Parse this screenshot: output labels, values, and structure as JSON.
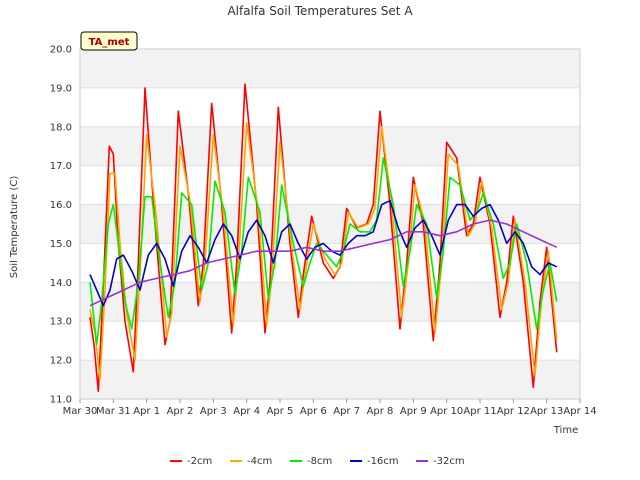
{
  "chart_data": {
    "type": "line",
    "title": "Alfalfa Soil Temperatures Set A",
    "xlabel": "Time",
    "ylabel": "Soil Temperature (C)",
    "badge": "TA_met",
    "ylim": [
      11.0,
      20.0
    ],
    "xlim": [
      0,
      15
    ],
    "y_ticks": [
      "11.0",
      "12.0",
      "13.0",
      "14.0",
      "15.0",
      "16.0",
      "17.0",
      "18.0",
      "19.0",
      "20.0"
    ],
    "x_ticks": [
      "Mar 30",
      "Mar 31",
      "Apr 1",
      "Apr 2",
      "Apr 3",
      "Apr 4",
      "Apr 5",
      "Apr 6",
      "Apr 7",
      "Apr 8",
      "Apr 9",
      "Apr 10",
      "Apr 11",
      "Apr 12",
      "Apr 13",
      "Apr 14"
    ],
    "legend_position": "bottom",
    "grid": true,
    "series": [
      {
        "name": "-2cm",
        "color": "#ff0000",
        "x": [
          0.3,
          0.42,
          0.55,
          0.72,
          0.88,
          1.0,
          1.15,
          1.35,
          1.6,
          1.75,
          1.95,
          2.25,
          2.55,
          2.7,
          2.95,
          3.25,
          3.55,
          3.7,
          3.95,
          4.25,
          4.55,
          4.7,
          4.95,
          5.3,
          5.55,
          5.7,
          5.95,
          6.3,
          6.55,
          6.7,
          6.95,
          7.3,
          7.6,
          7.8,
          8.0,
          8.3,
          8.6,
          8.8,
          9.0,
          9.3,
          9.6,
          9.8,
          10.0,
          10.3,
          10.6,
          10.8,
          11.0,
          11.3,
          11.6,
          11.8,
          12.0,
          12.3,
          12.6,
          12.8,
          13.0,
          13.3,
          13.6,
          13.8,
          14.0,
          14.3
        ],
        "y": [
          13.1,
          12.4,
          11.2,
          14.3,
          17.5,
          17.3,
          15.0,
          13.0,
          11.7,
          14.5,
          19.0,
          15.5,
          12.4,
          13.0,
          18.4,
          16.3,
          13.4,
          14.5,
          18.6,
          16.0,
          12.7,
          14.5,
          19.1,
          16.0,
          12.7,
          14.0,
          18.5,
          15.0,
          13.1,
          14.2,
          15.7,
          14.5,
          14.1,
          14.4,
          15.9,
          15.4,
          15.5,
          16.0,
          18.4,
          16.0,
          12.8,
          14.5,
          16.7,
          15.5,
          12.5,
          14.5,
          17.6,
          17.2,
          15.2,
          15.5,
          16.7,
          15.5,
          13.1,
          14.0,
          15.7,
          14.0,
          11.3,
          13.5,
          14.9,
          12.2
        ]
      },
      {
        "name": "-4cm",
        "color": "#ffa500",
        "x": [
          0.3,
          0.45,
          0.6,
          0.75,
          0.9,
          1.05,
          1.2,
          1.4,
          1.65,
          1.8,
          2.0,
          2.3,
          2.6,
          2.75,
          3.0,
          3.3,
          3.6,
          3.75,
          4.0,
          4.3,
          4.6,
          4.75,
          5.0,
          5.35,
          5.6,
          5.75,
          6.0,
          6.35,
          6.6,
          6.75,
          7.0,
          7.35,
          7.65,
          7.85,
          8.05,
          8.35,
          8.65,
          8.85,
          9.05,
          9.35,
          9.65,
          9.85,
          10.05,
          10.35,
          10.65,
          10.85,
          11.05,
          11.35,
          11.65,
          11.85,
          12.05,
          12.35,
          12.65,
          12.85,
          13.05,
          13.35,
          13.65,
          13.85,
          14.05,
          14.3
        ],
        "y": [
          13.3,
          12.7,
          11.5,
          13.8,
          16.8,
          16.8,
          15.0,
          13.2,
          12.0,
          14.2,
          17.8,
          15.6,
          12.6,
          13.2,
          17.5,
          16.1,
          13.5,
          14.5,
          17.8,
          15.8,
          12.9,
          14.5,
          18.1,
          15.8,
          12.9,
          14.1,
          17.6,
          14.9,
          13.3,
          14.2,
          15.5,
          14.6,
          14.2,
          14.5,
          15.8,
          15.4,
          15.5,
          15.9,
          18.0,
          16.0,
          13.1,
          14.5,
          16.5,
          15.5,
          12.7,
          14.5,
          17.3,
          17.0,
          15.2,
          15.5,
          16.6,
          15.4,
          13.3,
          14.0,
          15.6,
          14.0,
          11.6,
          13.6,
          14.8,
          12.5
        ]
      },
      {
        "name": "-8cm",
        "color": "#00ee00",
        "x": [
          0.3,
          0.5,
          0.65,
          0.85,
          1.0,
          1.15,
          1.35,
          1.55,
          1.75,
          1.95,
          2.15,
          2.4,
          2.65,
          2.85,
          3.05,
          3.35,
          3.65,
          3.85,
          4.05,
          4.35,
          4.65,
          4.85,
          5.05,
          5.4,
          5.65,
          5.85,
          6.05,
          6.4,
          6.7,
          6.9,
          7.1,
          7.4,
          7.7,
          7.9,
          8.1,
          8.4,
          8.7,
          8.9,
          9.1,
          9.4,
          9.7,
          9.9,
          10.1,
          10.4,
          10.7,
          10.9,
          11.1,
          11.4,
          11.7,
          11.9,
          12.1,
          12.4,
          12.7,
          12.9,
          13.1,
          13.4,
          13.7,
          13.9,
          14.1,
          14.3
        ],
        "y": [
          14.0,
          12.4,
          13.5,
          15.5,
          16.0,
          15.0,
          13.5,
          12.8,
          14.0,
          16.2,
          16.2,
          14.5,
          13.1,
          14.0,
          16.3,
          16.0,
          13.8,
          14.5,
          16.6,
          15.8,
          13.7,
          14.8,
          16.7,
          15.8,
          13.6,
          14.5,
          16.5,
          15.0,
          13.9,
          14.5,
          15.0,
          14.7,
          14.4,
          14.8,
          15.5,
          15.3,
          15.3,
          15.6,
          17.2,
          16.0,
          13.9,
          14.8,
          16.0,
          15.5,
          13.6,
          14.8,
          16.7,
          16.5,
          15.6,
          15.8,
          16.3,
          15.5,
          14.1,
          14.5,
          15.5,
          14.5,
          12.8,
          13.8,
          14.5,
          13.5
        ]
      },
      {
        "name": "-16cm",
        "color": "#0000cc",
        "x": [
          0.3,
          0.5,
          0.7,
          0.9,
          1.1,
          1.3,
          1.55,
          1.8,
          2.05,
          2.3,
          2.55,
          2.8,
          3.05,
          3.3,
          3.55,
          3.8,
          4.05,
          4.3,
          4.55,
          4.8,
          5.05,
          5.3,
          5.55,
          5.8,
          6.05,
          6.3,
          6.55,
          6.8,
          7.05,
          7.3,
          7.55,
          7.8,
          8.05,
          8.3,
          8.55,
          8.8,
          9.05,
          9.3,
          9.55,
          9.8,
          10.05,
          10.3,
          10.55,
          10.8,
          11.05,
          11.3,
          11.55,
          11.8,
          12.05,
          12.3,
          12.55,
          12.8,
          13.05,
          13.3,
          13.55,
          13.8,
          14.05,
          14.3
        ],
        "y": [
          14.2,
          13.8,
          13.4,
          13.8,
          14.6,
          14.7,
          14.3,
          13.8,
          14.7,
          15.0,
          14.6,
          13.9,
          14.8,
          15.2,
          14.9,
          14.5,
          15.1,
          15.5,
          15.2,
          14.6,
          15.3,
          15.6,
          15.2,
          14.5,
          15.3,
          15.5,
          15.0,
          14.6,
          14.9,
          15.0,
          14.8,
          14.7,
          15.0,
          15.2,
          15.2,
          15.3,
          16.0,
          16.1,
          15.4,
          14.9,
          15.4,
          15.6,
          15.2,
          14.7,
          15.6,
          16.0,
          16.0,
          15.7,
          15.9,
          16.0,
          15.6,
          15.0,
          15.3,
          15.0,
          14.4,
          14.2,
          14.5,
          14.4
        ]
      },
      {
        "name": "-32cm",
        "color": "#9a32cd",
        "x": [
          0.3,
          0.8,
          1.3,
          1.8,
          2.3,
          2.8,
          3.3,
          3.8,
          4.3,
          4.8,
          5.3,
          5.8,
          6.3,
          6.8,
          7.3,
          7.8,
          8.3,
          8.8,
          9.3,
          9.8,
          10.3,
          10.8,
          11.3,
          11.8,
          12.3,
          12.8,
          13.3,
          13.8,
          14.3
        ],
        "y": [
          13.4,
          13.6,
          13.8,
          14.0,
          14.1,
          14.2,
          14.3,
          14.5,
          14.6,
          14.7,
          14.8,
          14.8,
          14.8,
          14.9,
          14.8,
          14.8,
          14.9,
          15.0,
          15.1,
          15.3,
          15.3,
          15.2,
          15.3,
          15.5,
          15.6,
          15.5,
          15.3,
          15.1,
          14.9
        ]
      }
    ]
  }
}
